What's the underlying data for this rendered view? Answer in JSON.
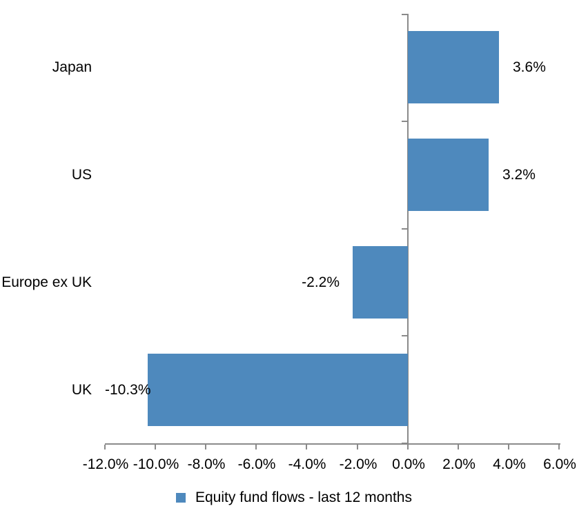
{
  "chart_data": {
    "type": "bar",
    "orientation": "horizontal",
    "title": "",
    "categories": [
      "Japan",
      "US",
      "Europe ex UK",
      "UK"
    ],
    "values": [
      3.6,
      3.2,
      -2.2,
      -10.3
    ],
    "data_labels": [
      "3.6%",
      "3.2%",
      "-2.2%",
      "-10.3%"
    ],
    "series_name": "Equity fund flows - last 12 months",
    "xlim": [
      -12,
      6
    ],
    "x_ticks": [
      -12,
      -10,
      -8,
      -6,
      -4,
      -2,
      0,
      2,
      4,
      6
    ],
    "x_tick_labels": [
      "-12.0%",
      "-10.0%",
      "-8.0%",
      "-6.0%",
      "-4.0%",
      "-2.0%",
      "0.0%",
      "2.0%",
      "4.0%",
      "6.0%"
    ],
    "grid": false,
    "legend_position": "bottom",
    "legend": [
      {
        "label": "Equity fund flows - last 12 months",
        "color": "#4E89BD"
      }
    ],
    "bar_color": "#4E89BD",
    "axis_color": "#8A8A8A",
    "text_color": "#000000",
    "background_color": "#FFFFFF"
  }
}
